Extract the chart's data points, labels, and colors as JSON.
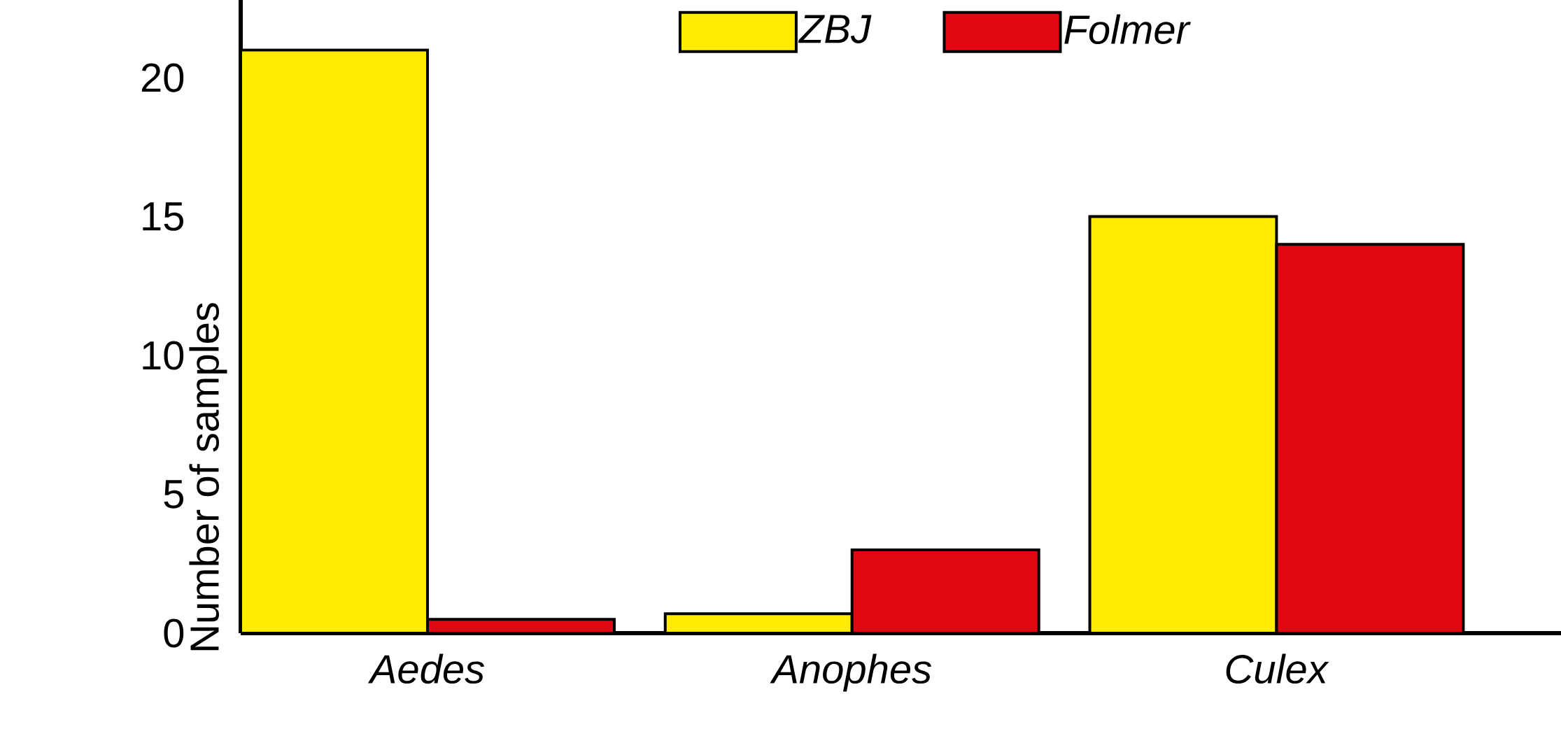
{
  "chart_data": {
    "type": "bar",
    "ylabel": "Number of samples",
    "categories": [
      "*Aedes*",
      "*Anophes*",
      "*Culex*"
    ],
    "series": [
      {
        "name": "*ZBJ*",
        "color": "#ffec00",
        "values": [
          21,
          0.7,
          15
        ]
      },
      {
        "name": "*Folmer*",
        "color": "#e30613",
        "values": [
          0.5,
          3,
          14
        ]
      }
    ],
    "ylim": [
      0,
      22.8
    ],
    "yticks": [
      0,
      5,
      10,
      15,
      20
    ],
    "grid": false,
    "legend": "top right"
  }
}
